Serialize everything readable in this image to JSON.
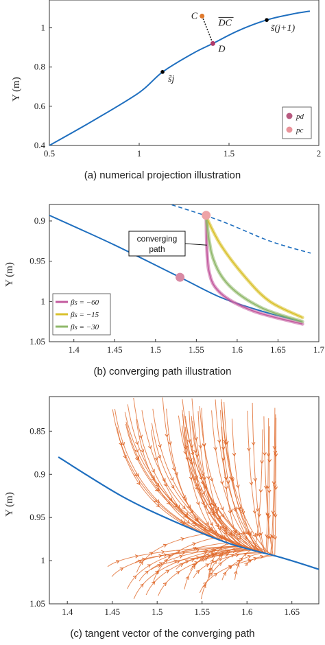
{
  "chart_data": [
    {
      "type": "line",
      "xlabel": "",
      "ylabel": "Y (m)",
      "xlim": [
        0.5,
        2
      ],
      "ylim": [
        0.4,
        1.1
      ],
      "xticks": [
        "0.5",
        "1",
        "1.5",
        "2"
      ],
      "yticks": [
        "0.4",
        "0.6",
        "0.8",
        "1"
      ],
      "caption": "(a) numerical projection illustration",
      "path": [
        [
          0.5,
          0.4
        ],
        [
          0.75,
          0.53
        ],
        [
          1.0,
          0.67
        ],
        [
          1.13,
          0.775
        ],
        [
          1.3,
          0.87
        ],
        [
          1.41,
          0.92
        ],
        [
          1.55,
          0.985
        ],
        [
          1.71,
          1.04
        ],
        [
          1.85,
          1.07
        ],
        [
          1.95,
          1.085
        ]
      ],
      "points": [
        {
          "name": "s_j",
          "label": "s̃j",
          "x": 1.13,
          "y": 0.775,
          "color": "#000000"
        },
        {
          "name": "C",
          "label": "C",
          "x": 1.35,
          "y": 1.06,
          "color": "#e07a2e"
        },
        {
          "name": "D",
          "label": "D",
          "x": 1.41,
          "y": 0.92,
          "color": "#b03a6a"
        },
        {
          "name": "s_j1",
          "label": "s̃(j+1)",
          "x": 1.71,
          "y": 1.04,
          "color": "#000000"
        }
      ],
      "vector_label": "DC",
      "legend": [
        {
          "label": "pd",
          "color": "#b85a80"
        },
        {
          "label": "pc",
          "color": "#e9939a"
        }
      ],
      "legend_position": "bottom-right"
    },
    {
      "type": "line",
      "xlabel": "",
      "ylabel": "Y (m)",
      "xlim": [
        1.37,
        1.7
      ],
      "ylim_reversed": [
        0.9,
        1.05
      ],
      "xticks": [
        "1.4",
        "1.45",
        "1.5",
        "1.55",
        "1.6",
        "1.65",
        "1.7"
      ],
      "yticks": [
        "0.9",
        "0.95",
        "1",
        "1.05"
      ],
      "caption": "(b) converging path illustration",
      "reference_path": [
        [
          1.37,
          0.893
        ],
        [
          1.45,
          0.93
        ],
        [
          1.53,
          0.97
        ],
        [
          1.58,
          0.995
        ],
        [
          1.63,
          1.012
        ],
        [
          1.68,
          1.025
        ]
      ],
      "dashed_path": [
        [
          1.52,
          0.88
        ],
        [
          1.58,
          0.9
        ],
        [
          1.64,
          0.925
        ],
        [
          1.69,
          0.94
        ]
      ],
      "markers": [
        {
          "x": 1.53,
          "y": 0.97
        },
        {
          "x": 1.562,
          "y": 0.893
        }
      ],
      "annotation": [
        "converging",
        "path"
      ],
      "series": [
        {
          "name": "βs = −60",
          "color": "#c35a9e",
          "values": [
            [
              1.562,
              0.895
            ],
            [
              1.565,
              0.96
            ],
            [
              1.58,
              0.99
            ],
            [
              1.62,
              1.012
            ],
            [
              1.68,
              1.028
            ]
          ]
        },
        {
          "name": "βs = −15",
          "color": "#d9c12c",
          "values": [
            [
              1.562,
              0.895
            ],
            [
              1.58,
              0.93
            ],
            [
              1.61,
              0.97
            ],
            [
              1.64,
              1.0
            ],
            [
              1.68,
              1.02
            ]
          ]
        },
        {
          "name": "βs = −30",
          "color": "#8fb86a",
          "values": [
            [
              1.562,
              0.895
            ],
            [
              1.57,
              0.945
            ],
            [
              1.59,
              0.98
            ],
            [
              1.63,
              1.008
            ],
            [
              1.68,
              1.025
            ]
          ]
        }
      ],
      "legend_position": "bottom-left"
    },
    {
      "type": "line",
      "xlabel": "",
      "ylabel": "Y (m)",
      "xlim": [
        1.38,
        1.68
      ],
      "ylim_reversed": [
        0.81,
        1.05
      ],
      "xticks": [
        "1.4",
        "1.45",
        "1.5",
        "1.55",
        "1.6",
        "1.65"
      ],
      "yticks": [
        "0.85",
        "0.9",
        "0.95",
        "1",
        "1.05"
      ],
      "caption": "(c) tangent vector of the converging path",
      "reference_path": [
        [
          1.39,
          0.88
        ],
        [
          1.46,
          0.925
        ],
        [
          1.52,
          0.955
        ],
        [
          1.58,
          0.98
        ],
        [
          1.64,
          0.997
        ],
        [
          1.68,
          1.01
        ]
      ],
      "vector_color": "#e06a2c"
    }
  ]
}
